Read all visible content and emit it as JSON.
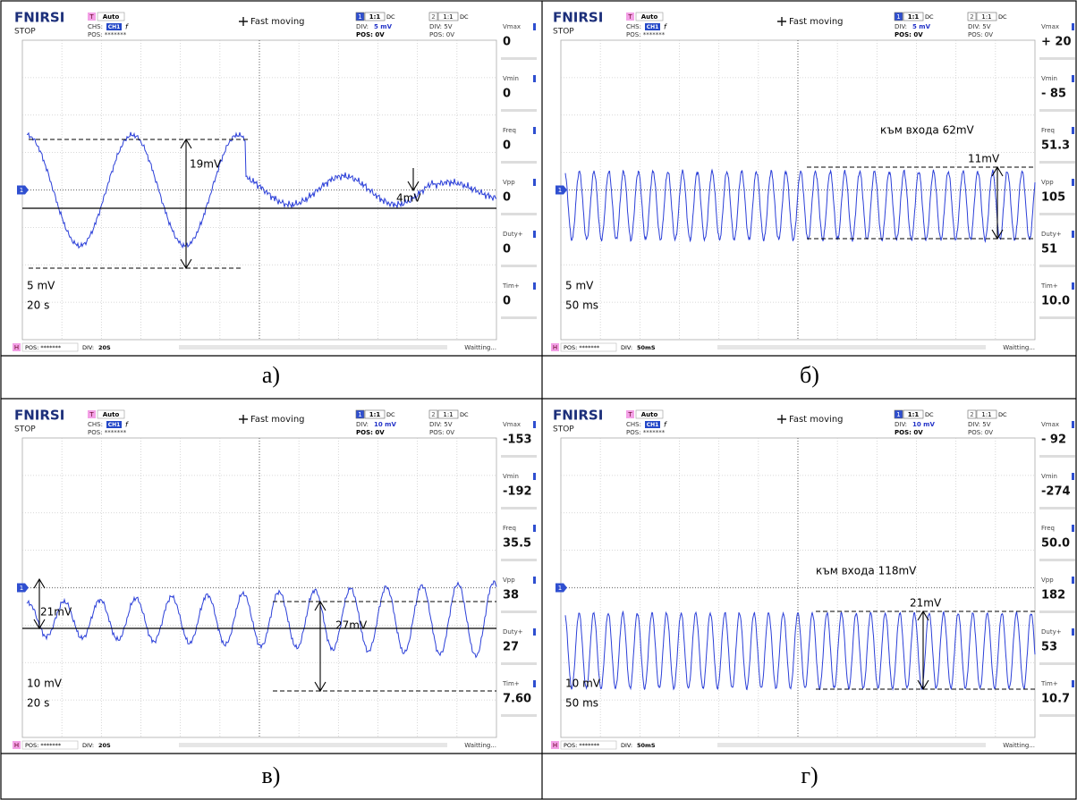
{
  "scope": {
    "brand": "FNIRSI",
    "state": "STOP",
    "trigger_ch": "T",
    "trigger_mode": "Auto",
    "chs": "CHS:",
    "chs_ch": "CH1",
    "chs_edge": "f",
    "pos": "POS: *******",
    "mode": "Fast moving",
    "ch1": "1",
    "ch2": "2",
    "probe": "1:1",
    "coupling": "DC",
    "div_label": "DIV:",
    "ch1_pos": "POS: 0V",
    "ch2_div": "DIV: 5V",
    "ch2_pos": "POS: 0V",
    "footer_h": "H",
    "footer_pos": "POS: *******",
    "footer_div": "DIV:",
    "status": "Waitting...",
    "marker": "1",
    "measure_labels": [
      "Vmax",
      "Vmin",
      "Freq",
      "Vpp",
      "Duty+",
      "Tim+"
    ]
  },
  "panels": [
    {
      "caption": "а)",
      "ch1_div": "5 mV",
      "time_div": "20S",
      "measures": [
        "0",
        "0",
        "0",
        "0",
        "0",
        "0"
      ],
      "scale_v": "5 mV",
      "scale_t": "20 s",
      "annotations": [
        "19mV",
        "4mV"
      ]
    },
    {
      "caption": "б)",
      "ch1_div": "5 mV",
      "time_div": "50mS",
      "measures": [
        "+ 20",
        "- 85",
        "51.3",
        "105",
        "51",
        "10.0"
      ],
      "scale_v": "5 mV",
      "scale_t": "50 ms",
      "annotations": [
        "към входа 62mV",
        "11mV"
      ]
    },
    {
      "caption": "в)",
      "ch1_div": "10 mV",
      "time_div": "20S",
      "measures": [
        "-153",
        "-192",
        "35.5",
        "38",
        "27",
        "7.60"
      ],
      "scale_v": "10 mV",
      "scale_t": "20 s",
      "annotations": [
        "21mV",
        "27mV"
      ]
    },
    {
      "caption": "г)",
      "ch1_div": "10 mV",
      "time_div": "50mS",
      "measures": [
        "- 92",
        "-274",
        "50.0",
        "182",
        "53",
        "10.7"
      ],
      "scale_v": "10 mV",
      "scale_t": "50 ms",
      "annotations": [
        "към входа 118mV",
        "21mV"
      ]
    }
  ]
}
